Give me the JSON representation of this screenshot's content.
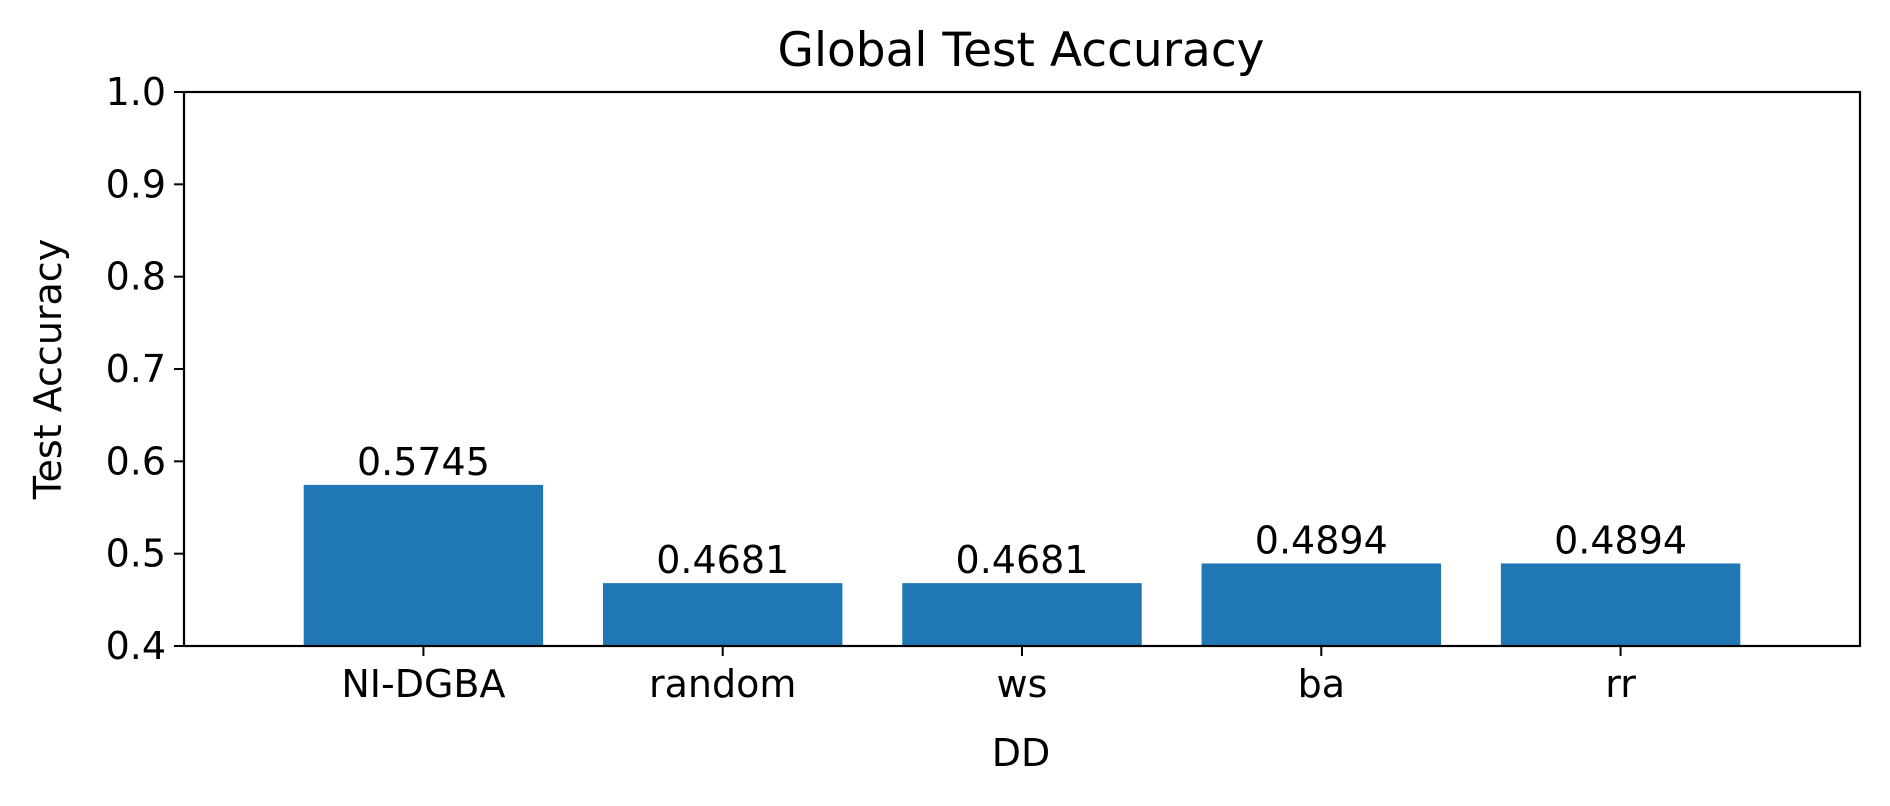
{
  "chart_data": {
    "type": "bar",
    "title": "Global Test Accuracy",
    "xlabel": "DD",
    "ylabel": "Test Accuracy",
    "categories": [
      "NI-DGBA",
      "random",
      "ws",
      "ba",
      "rr"
    ],
    "values": [
      0.5745,
      0.4681,
      0.4681,
      0.4894,
      0.4894
    ],
    "value_labels": [
      "0.5745",
      "0.4681",
      "0.4681",
      "0.4894",
      "0.4894"
    ],
    "ylim": [
      0.4,
      1.0
    ],
    "yticks": [
      0.4,
      0.5,
      0.6,
      0.7,
      0.8,
      0.9,
      1.0
    ],
    "ytick_labels": [
      "0.4",
      "0.5",
      "0.6",
      "0.7",
      "0.8",
      "0.9",
      "1.0"
    ],
    "grid": false,
    "legend": "none",
    "colors": {
      "bar": "#1f77b4",
      "axes": "#000000",
      "text": "#000000"
    }
  }
}
